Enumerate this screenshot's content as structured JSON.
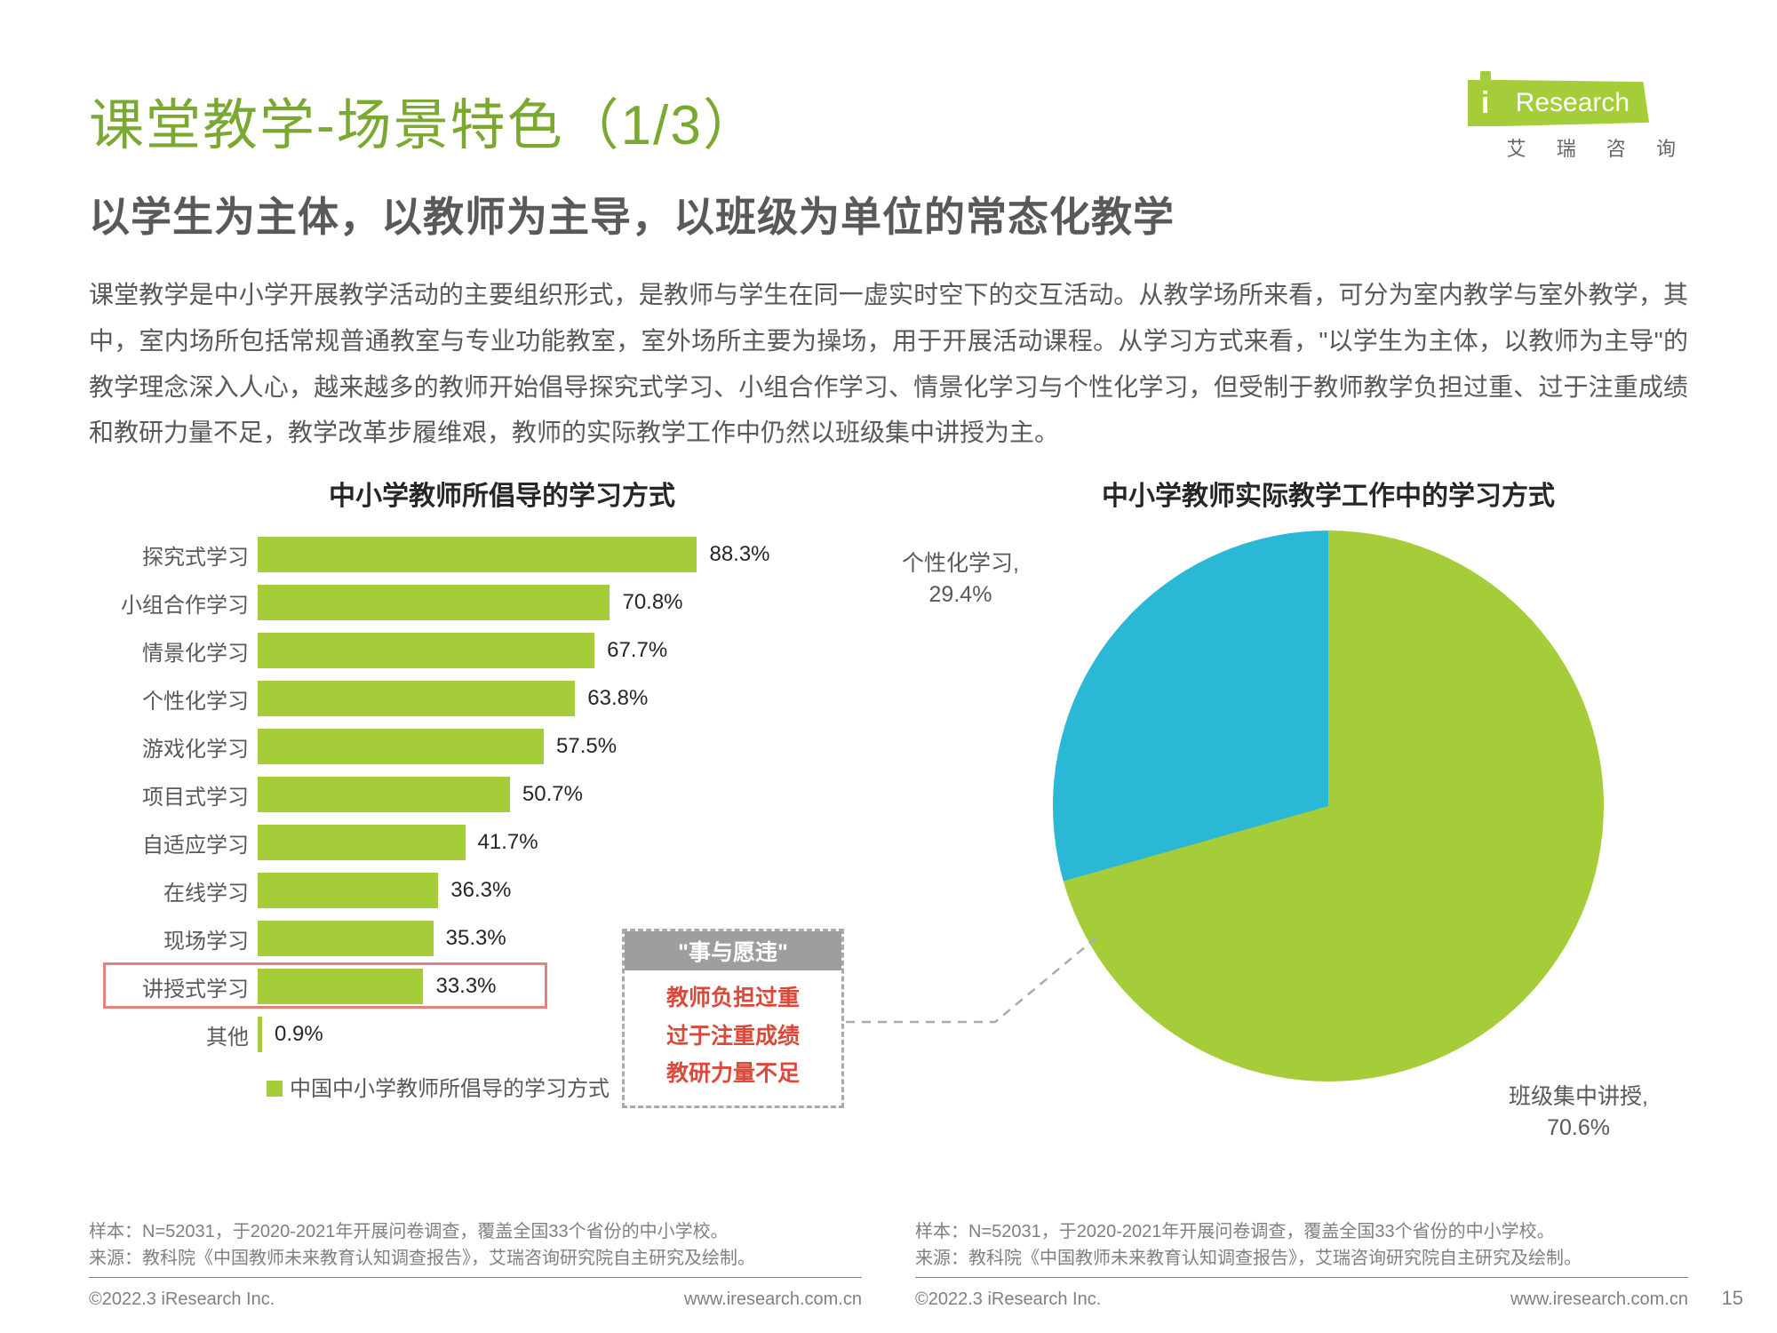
{
  "logo": {
    "brand": "Research",
    "sub": "艾 瑞 咨 询"
  },
  "title": {
    "text": "课堂教学-场景特色（1/3）",
    "color": "#7aa830"
  },
  "subtitle": "以学生为主体，以教师为主导，以班级为单位的常态化教学",
  "body": "课堂教学是中小学开展教学活动的主要组织形式，是教师与学生在同一虚实时空下的交互活动。从教学场所来看，可分为室内教学与室外教学，其中，室内场所包括常规普通教室与专业功能教室，室外场所主要为操场，用于开展活动课程。从学习方式来看，\"以学生为主体，以教师为主导\"的教学理念深入人心，越来越多的教师开始倡导探究式学习、小组合作学习、情景化学习与个性化学习，但受制于教师教学负担过重、过于注重成绩和教研力量不足，教学改革步履维艰，教师的实际教学工作中仍然以班级集中讲授为主。",
  "bar_chart": {
    "title": "中小学教师所倡导的学习方式",
    "bar_color": "#a4cd39",
    "max_scale": 100,
    "items": [
      {
        "label": "探究式学习",
        "value": 88.3
      },
      {
        "label": "小组合作学习",
        "value": 70.8
      },
      {
        "label": "情景化学习",
        "value": 67.7
      },
      {
        "label": "个性化学习",
        "value": 63.8
      },
      {
        "label": "游戏化学习",
        "value": 57.5
      },
      {
        "label": "项目式学习",
        "value": 50.7
      },
      {
        "label": "自适应学习",
        "value": 41.7
      },
      {
        "label": "在线学习",
        "value": 36.3
      },
      {
        "label": "现场学习",
        "value": 35.3
      },
      {
        "label": "讲授式学习",
        "value": 33.3,
        "highlight": true
      },
      {
        "label": "其他",
        "value": 0.9
      }
    ],
    "legend": "中国中小学教师所倡导的学习方式（%）"
  },
  "callout": {
    "header": "\"事与愿违\"",
    "lines": [
      {
        "text": "教师负担过重",
        "color": "#d94a3a"
      },
      {
        "text": "过于注重成绩",
        "color": "#d94a3a"
      },
      {
        "text": "教研力量不足",
        "color": "#d94a3a"
      }
    ]
  },
  "pie_chart": {
    "title": "中小学教师实际教学工作中的学习方式",
    "slices": [
      {
        "label": "班级集中讲授,",
        "value": 70.6,
        "color": "#a4cd39"
      },
      {
        "label": "个性化学习,",
        "value": 29.4,
        "color": "#2ab8d6"
      }
    ]
  },
  "sources": {
    "left": "样本：N=52031，于2020-2021年开展问卷调查，覆盖全国33个省份的中小学校。\n来源：教科院《中国教师未来教育认知调查报告》，艾瑞咨询研究院自主研究及绘制。",
    "right": "样本：N=52031，于2020-2021年开展问卷调查，覆盖全国33个省份的中小学校。\n来源：教科院《中国教师未来教育认知调查报告》，艾瑞咨询研究院自主研究及绘制。"
  },
  "footer": {
    "copyright": "©2022.3 iResearch Inc.",
    "url": "www.iresearch.com.cn",
    "page": "15"
  }
}
